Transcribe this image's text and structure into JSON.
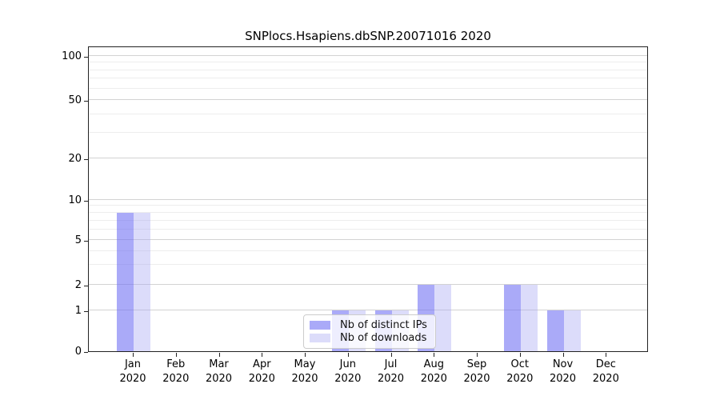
{
  "figure": {
    "title": "SNPlocs.Hsapiens.dbSNP.20071016 2020"
  },
  "chart_data": {
    "type": "bar",
    "title": "SNPlocs.Hsapiens.dbSNP.20071016 2020",
    "categories": [
      "Jan 2020",
      "Feb 2020",
      "Mar 2020",
      "Apr 2020",
      "May 2020",
      "Jun 2020",
      "Jul 2020",
      "Aug 2020",
      "Sep 2020",
      "Oct 2020",
      "Nov 2020",
      "Dec 2020"
    ],
    "series": [
      {
        "name": "Nb of distinct IPs",
        "color": "#aaaaf8",
        "values": [
          8,
          0,
          0,
          0,
          0,
          1,
          1,
          2,
          0,
          2,
          1,
          0
        ]
      },
      {
        "name": "Nb of downloads",
        "color": "#dcdcfa",
        "values": [
          8,
          0,
          0,
          0,
          0,
          1,
          1,
          2,
          0,
          2,
          1,
          0
        ]
      }
    ],
    "xlabel": "",
    "ylabel": "",
    "yticks": [
      0,
      1,
      2,
      5,
      10,
      20,
      50,
      100
    ],
    "ylim": [
      0,
      120
    ],
    "yscale": "log1p",
    "grid": true,
    "legend_position": "lower-center-left"
  }
}
